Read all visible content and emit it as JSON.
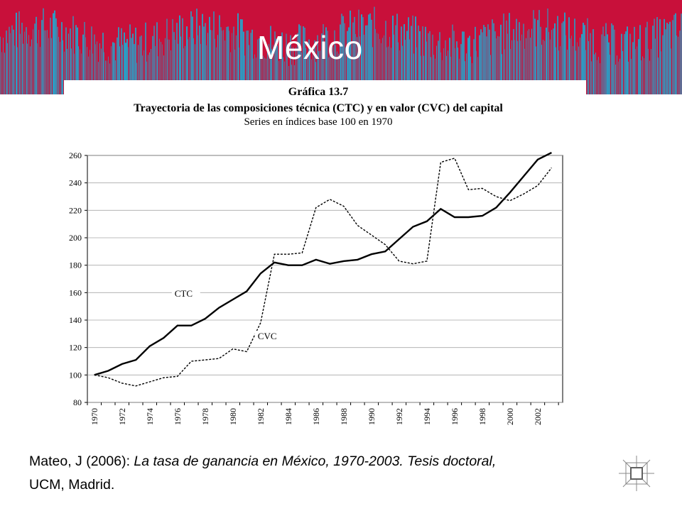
{
  "slide": {
    "title": "México",
    "colors": {
      "banner_red": "#c8103a",
      "banner_blue": "#2a9ec6",
      "title_text": "#ffffff"
    }
  },
  "chart_data": {
    "type": "line",
    "heading": "Gráfica 13.7",
    "title": "Trayectoria de las composiciones técnica (CTC) y en valor (CVC) del capital",
    "subtitle": "Series en índices base 100 en 1970",
    "x": [
      1970,
      1971,
      1972,
      1973,
      1974,
      1975,
      1976,
      1977,
      1978,
      1979,
      1980,
      1981,
      1982,
      1983,
      1984,
      1985,
      1986,
      1987,
      1988,
      1989,
      1990,
      1991,
      1992,
      1993,
      1994,
      1995,
      1996,
      1997,
      1998,
      1999,
      2000,
      2001,
      2002,
      2003
    ],
    "xticks": [
      "1970",
      "1972",
      "1974",
      "1976",
      "1978",
      "1980",
      "1982",
      "1984",
      "1986",
      "1988",
      "1990",
      "1992",
      "1994",
      "1996",
      "1998",
      "2000",
      "2002"
    ],
    "ylim": [
      80,
      260
    ],
    "yticks": [
      80,
      100,
      120,
      140,
      160,
      180,
      200,
      220,
      240,
      260
    ],
    "grid": true,
    "series": [
      {
        "name": "CTC",
        "style": "solid",
        "values": [
          100,
          103,
          108,
          111,
          121,
          127,
          136,
          136,
          141,
          149,
          155,
          161,
          174,
          182,
          180,
          180,
          184,
          181,
          183,
          184,
          188,
          190,
          199,
          208,
          212,
          221,
          215,
          215,
          216,
          222,
          233,
          245,
          257,
          262
        ]
      },
      {
        "name": "CVC",
        "style": "dashed",
        "values": [
          100,
          98,
          94,
          92,
          95,
          98,
          99,
          110,
          111,
          112,
          119,
          117,
          138,
          188,
          188,
          189,
          222,
          228,
          223,
          209,
          202,
          195,
          183,
          181,
          183,
          255,
          258,
          235,
          236,
          230,
          227,
          232,
          238,
          251
        ]
      }
    ]
  },
  "citation": {
    "prefix": "Mateo, J (2006):  ",
    "title_italic": "La tasa de ganancia en México, 1970-2003. Tesis doctoral,",
    "suffix": "UCM, Madrid."
  }
}
